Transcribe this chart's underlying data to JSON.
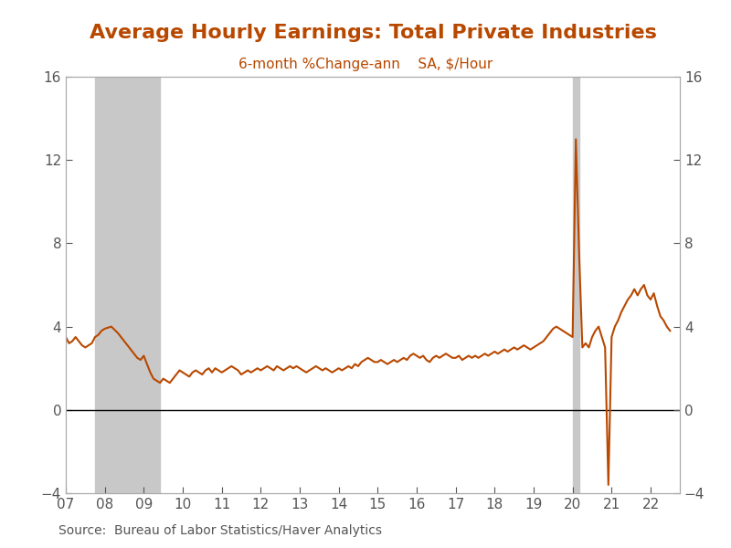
{
  "title": "Average Hourly Earnings: Total Private Industries",
  "subtitle": "6-month %Change-ann    SA, $/Hour",
  "source": "Source:  Bureau of Labor Statistics/Haver Analytics",
  "title_color": "#B84800",
  "subtitle_color": "#B84800",
  "line_color": "#B84800",
  "background_color": "#ffffff",
  "recession_shades": [
    {
      "start": 2007.75,
      "end": 2009.417
    },
    {
      "start": 2020.0,
      "end": 2020.167
    }
  ],
  "shade_color": "#C8C8C8",
  "ylim": [
    -4,
    16
  ],
  "yticks": [
    -4,
    0,
    4,
    8,
    12,
    16
  ],
  "xlim": [
    2007.0,
    2022.75
  ],
  "xticks": [
    2007,
    2008,
    2009,
    2010,
    2011,
    2012,
    2013,
    2014,
    2015,
    2016,
    2017,
    2018,
    2019,
    2020,
    2021,
    2022
  ],
  "xticklabels": [
    "07",
    "08",
    "09",
    "10",
    "11",
    "12",
    "13",
    "14",
    "15",
    "16",
    "17",
    "18",
    "19",
    "20",
    "21",
    "22"
  ],
  "zero_line_color": "#000000",
  "axis_color": "#aaaaaa",
  "tick_color": "#555555",
  "font_size_title": 16,
  "font_size_subtitle": 11,
  "font_size_source": 10,
  "font_size_ticks": 11,
  "dates": [
    2007.0,
    2007.083,
    2007.167,
    2007.25,
    2007.333,
    2007.417,
    2007.5,
    2007.583,
    2007.667,
    2007.75,
    2007.833,
    2007.917,
    2008.0,
    2008.083,
    2008.167,
    2008.25,
    2008.333,
    2008.417,
    2008.5,
    2008.583,
    2008.667,
    2008.75,
    2008.833,
    2008.917,
    2009.0,
    2009.083,
    2009.167,
    2009.25,
    2009.333,
    2009.417,
    2009.5,
    2009.583,
    2009.667,
    2009.75,
    2009.833,
    2009.917,
    2010.0,
    2010.083,
    2010.167,
    2010.25,
    2010.333,
    2010.417,
    2010.5,
    2010.583,
    2010.667,
    2010.75,
    2010.833,
    2010.917,
    2011.0,
    2011.083,
    2011.167,
    2011.25,
    2011.333,
    2011.417,
    2011.5,
    2011.583,
    2011.667,
    2011.75,
    2011.833,
    2011.917,
    2012.0,
    2012.083,
    2012.167,
    2012.25,
    2012.333,
    2012.417,
    2012.5,
    2012.583,
    2012.667,
    2012.75,
    2012.833,
    2012.917,
    2013.0,
    2013.083,
    2013.167,
    2013.25,
    2013.333,
    2013.417,
    2013.5,
    2013.583,
    2013.667,
    2013.75,
    2013.833,
    2013.917,
    2014.0,
    2014.083,
    2014.167,
    2014.25,
    2014.333,
    2014.417,
    2014.5,
    2014.583,
    2014.667,
    2014.75,
    2014.833,
    2014.917,
    2015.0,
    2015.083,
    2015.167,
    2015.25,
    2015.333,
    2015.417,
    2015.5,
    2015.583,
    2015.667,
    2015.75,
    2015.833,
    2015.917,
    2016.0,
    2016.083,
    2016.167,
    2016.25,
    2016.333,
    2016.417,
    2016.5,
    2016.583,
    2016.667,
    2016.75,
    2016.833,
    2016.917,
    2017.0,
    2017.083,
    2017.167,
    2017.25,
    2017.333,
    2017.417,
    2017.5,
    2017.583,
    2017.667,
    2017.75,
    2017.833,
    2017.917,
    2018.0,
    2018.083,
    2018.167,
    2018.25,
    2018.333,
    2018.417,
    2018.5,
    2018.583,
    2018.667,
    2018.75,
    2018.833,
    2018.917,
    2019.0,
    2019.083,
    2019.167,
    2019.25,
    2019.333,
    2019.417,
    2019.5,
    2019.583,
    2019.667,
    2019.75,
    2019.833,
    2019.917,
    2020.0,
    2020.083,
    2020.167,
    2020.25,
    2020.333,
    2020.417,
    2020.5,
    2020.583,
    2020.667,
    2020.75,
    2020.833,
    2020.917,
    2021.0,
    2021.083,
    2021.167,
    2021.25,
    2021.333,
    2021.417,
    2021.5,
    2021.583,
    2021.667,
    2021.75,
    2021.833,
    2021.917,
    2022.0,
    2022.083,
    2022.167,
    2022.25,
    2022.333,
    2022.417,
    2022.5
  ],
  "values": [
    3.5,
    3.2,
    3.3,
    3.5,
    3.3,
    3.1,
    3.0,
    3.1,
    3.2,
    3.5,
    3.6,
    3.8,
    3.9,
    3.95,
    4.0,
    3.85,
    3.7,
    3.5,
    3.3,
    3.1,
    2.9,
    2.7,
    2.5,
    2.4,
    2.6,
    2.2,
    1.8,
    1.5,
    1.4,
    1.3,
    1.5,
    1.4,
    1.3,
    1.5,
    1.7,
    1.9,
    1.8,
    1.7,
    1.6,
    1.8,
    1.9,
    1.8,
    1.7,
    1.9,
    2.0,
    1.8,
    2.0,
    1.9,
    1.8,
    1.9,
    2.0,
    2.1,
    2.0,
    1.9,
    1.7,
    1.8,
    1.9,
    1.8,
    1.9,
    2.0,
    1.9,
    2.0,
    2.1,
    2.0,
    1.9,
    2.1,
    2.0,
    1.9,
    2.0,
    2.1,
    2.0,
    2.1,
    2.0,
    1.9,
    1.8,
    1.9,
    2.0,
    2.1,
    2.0,
    1.9,
    2.0,
    1.9,
    1.8,
    1.9,
    2.0,
    1.9,
    2.0,
    2.1,
    2.0,
    2.2,
    2.1,
    2.3,
    2.4,
    2.5,
    2.4,
    2.3,
    2.3,
    2.4,
    2.3,
    2.2,
    2.3,
    2.4,
    2.3,
    2.4,
    2.5,
    2.4,
    2.6,
    2.7,
    2.6,
    2.5,
    2.6,
    2.4,
    2.3,
    2.5,
    2.6,
    2.5,
    2.6,
    2.7,
    2.6,
    2.5,
    2.5,
    2.6,
    2.4,
    2.5,
    2.6,
    2.5,
    2.6,
    2.5,
    2.6,
    2.7,
    2.6,
    2.7,
    2.8,
    2.7,
    2.8,
    2.9,
    2.8,
    2.9,
    3.0,
    2.9,
    3.0,
    3.1,
    3.0,
    2.9,
    3.0,
    3.1,
    3.2,
    3.3,
    3.5,
    3.7,
    3.9,
    4.0,
    3.9,
    3.8,
    3.7,
    3.6,
    3.5,
    13.0,
    7.5,
    3.0,
    3.2,
    3.0,
    3.5,
    3.8,
    4.0,
    3.5,
    3.0,
    -3.6,
    3.5,
    4.0,
    4.3,
    4.7,
    5.0,
    5.3,
    5.5,
    5.8,
    5.5,
    5.8,
    6.0,
    5.5,
    5.3,
    5.6,
    5.0,
    4.5,
    4.3,
    4.0,
    3.8
  ]
}
